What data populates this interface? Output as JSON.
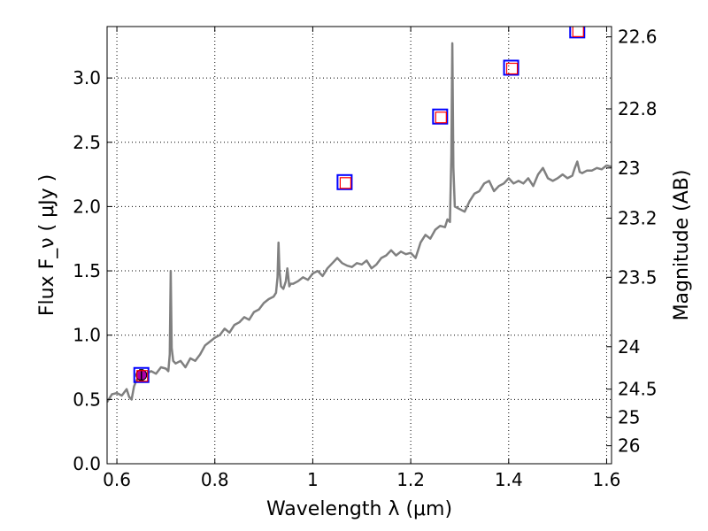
{
  "chart_data": {
    "type": "line",
    "xlabel": "Wavelength  λ (μm)",
    "ylabel": "Flux  F_ν  ( μJy )",
    "ylabel_right": "Magnitude (AB)",
    "xlim": [
      0.58,
      1.61
    ],
    "ylim": [
      0.0,
      3.4
    ],
    "grid": true,
    "x_ticks": [
      0.6,
      0.8,
      1.0,
      1.2,
      1.4,
      1.6
    ],
    "x_tick_labels": [
      "0.6",
      "0.8",
      "1",
      "1.2",
      "1.4",
      "1.6"
    ],
    "y_ticks": [
      0.0,
      0.5,
      1.0,
      1.5,
      2.0,
      2.5,
      3.0
    ],
    "y_tick_labels": [
      "0.0",
      "0.5",
      "1.0",
      "1.5",
      "2.0",
      "2.5",
      "3.0"
    ],
    "right_ticks": [
      {
        "label": "22.6",
        "flux": 3.32
      },
      {
        "label": "22.8",
        "flux": 2.76
      },
      {
        "label": "23",
        "flux": 2.3
      },
      {
        "label": "23.2",
        "flux": 1.91
      },
      {
        "label": "23.5",
        "flux": 1.45
      },
      {
        "label": "24",
        "flux": 0.91
      },
      {
        "label": "24.5",
        "flux": 0.58
      },
      {
        "label": "25",
        "flux": 0.36
      },
      {
        "label": "26",
        "flux": 0.14
      }
    ],
    "series": [
      {
        "color": "#808080",
        "x": [
          0.58,
          0.59,
          0.6,
          0.61,
          0.62,
          0.625,
          0.63,
          0.635,
          0.64,
          0.65,
          0.66,
          0.67,
          0.68,
          0.69,
          0.7,
          0.705,
          0.708,
          0.71,
          0.712,
          0.715,
          0.72,
          0.73,
          0.74,
          0.75,
          0.76,
          0.77,
          0.78,
          0.79,
          0.8,
          0.81,
          0.82,
          0.83,
          0.84,
          0.85,
          0.86,
          0.87,
          0.88,
          0.89,
          0.9,
          0.91,
          0.92,
          0.925,
          0.928,
          0.93,
          0.932,
          0.935,
          0.94,
          0.945,
          0.948,
          0.95,
          0.952,
          0.955,
          0.96,
          0.97,
          0.98,
          0.99,
          1.0,
          1.01,
          1.02,
          1.03,
          1.04,
          1.05,
          1.06,
          1.07,
          1.08,
          1.09,
          1.1,
          1.11,
          1.12,
          1.13,
          1.14,
          1.15,
          1.16,
          1.17,
          1.18,
          1.19,
          1.2,
          1.21,
          1.22,
          1.23,
          1.24,
          1.25,
          1.26,
          1.27,
          1.275,
          1.28,
          1.283,
          1.285,
          1.287,
          1.29,
          1.3,
          1.31,
          1.32,
          1.33,
          1.34,
          1.35,
          1.36,
          1.37,
          1.38,
          1.39,
          1.4,
          1.41,
          1.42,
          1.43,
          1.44,
          1.45,
          1.46,
          1.47,
          1.48,
          1.49,
          1.5,
          1.51,
          1.52,
          1.53,
          1.535,
          1.54,
          1.545,
          1.55,
          1.56,
          1.57,
          1.58,
          1.59,
          1.6,
          1.61
        ],
        "y": [
          0.48,
          0.54,
          0.55,
          0.53,
          0.58,
          0.52,
          0.5,
          0.6,
          0.65,
          0.68,
          0.7,
          0.72,
          0.7,
          0.75,
          0.74,
          0.72,
          0.85,
          1.5,
          0.9,
          0.8,
          0.78,
          0.8,
          0.75,
          0.82,
          0.8,
          0.85,
          0.92,
          0.95,
          0.98,
          1.0,
          1.05,
          1.02,
          1.08,
          1.1,
          1.14,
          1.12,
          1.18,
          1.2,
          1.25,
          1.28,
          1.3,
          1.33,
          1.45,
          1.72,
          1.5,
          1.38,
          1.36,
          1.42,
          1.52,
          1.45,
          1.38,
          1.4,
          1.4,
          1.42,
          1.45,
          1.43,
          1.48,
          1.5,
          1.46,
          1.52,
          1.56,
          1.6,
          1.56,
          1.54,
          1.53,
          1.56,
          1.55,
          1.58,
          1.52,
          1.55,
          1.6,
          1.62,
          1.66,
          1.62,
          1.65,
          1.63,
          1.64,
          1.6,
          1.72,
          1.78,
          1.75,
          1.82,
          1.85,
          1.84,
          1.9,
          1.88,
          2.4,
          3.27,
          2.3,
          2.0,
          1.98,
          1.96,
          2.04,
          2.1,
          2.12,
          2.18,
          2.2,
          2.12,
          2.16,
          2.18,
          2.22,
          2.18,
          2.2,
          2.18,
          2.22,
          2.16,
          2.25,
          2.3,
          2.22,
          2.2,
          2.22,
          2.25,
          2.22,
          2.24,
          2.3,
          2.35,
          2.27,
          2.26,
          2.28,
          2.28,
          2.3,
          2.29,
          2.32,
          2.31
        ]
      }
    ],
    "photometry": [
      {
        "x": 0.65,
        "y": 0.69,
        "err": 0.04,
        "marker": "circle",
        "color": "#aa00aa"
      },
      {
        "x": 0.65,
        "y": 0.69,
        "marker": "square",
        "color": "#0000ff"
      },
      {
        "x": 1.065,
        "y": 2.19,
        "marker": "square",
        "color": "#0000ff"
      },
      {
        "x": 1.26,
        "y": 2.7,
        "marker": "square",
        "color": "#0000ff"
      },
      {
        "x": 1.405,
        "y": 3.08,
        "marker": "square",
        "color": "#0000ff"
      },
      {
        "x": 1.54,
        "y": 3.37,
        "marker": "square",
        "color": "#0000ff"
      }
    ],
    "model": [
      {
        "x": 0.65,
        "y": 0.69,
        "color": "#ff0000"
      },
      {
        "x": 1.065,
        "y": 2.19,
        "color": "#ff0000"
      },
      {
        "x": 1.26,
        "y": 2.7,
        "color": "#ff0000"
      },
      {
        "x": 1.405,
        "y": 3.08,
        "color": "#ff0000"
      },
      {
        "x": 1.54,
        "y": 3.37,
        "color": "#ff0000"
      }
    ]
  }
}
